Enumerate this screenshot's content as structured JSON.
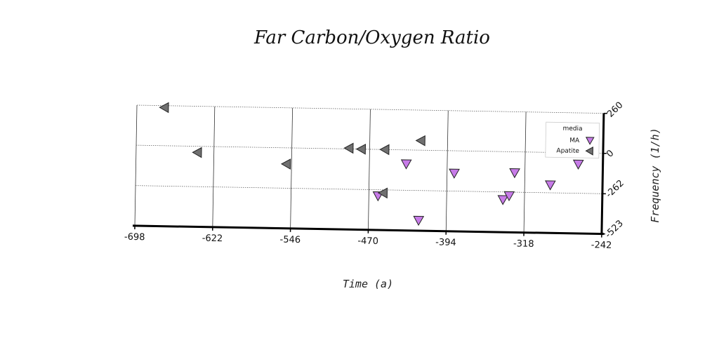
{
  "chart_data": {
    "type": "scatter",
    "title": "Far Carbon/Oxygen Ratio",
    "xlabel": "Time (a)",
    "ylabel": "Frequency (1/h)",
    "xlim": [
      -698,
      -242
    ],
    "ylim": [
      -523,
      260
    ],
    "xticks": [
      -698,
      -622,
      -546,
      -470,
      -394,
      -318,
      -242
    ],
    "yticks": [
      260,
      0,
      -262,
      -523
    ],
    "xtick_labels": [
      "-698",
      "-622",
      "-546",
      "-470",
      "-394",
      "-318",
      "-242"
    ],
    "ytick_labels": [
      "260",
      "0",
      "-262",
      "-523"
    ],
    "grid": true,
    "legend": {
      "title": "media",
      "position": "top-right"
    },
    "series": [
      {
        "name": "MA",
        "marker": "triangle-down",
        "color": "#c77be8",
        "points": [
          {
            "x": 461,
            "y": -301
          },
          {
            "x": 434,
            "y": -90
          },
          {
            "x": 421,
            "y": -455
          },
          {
            "x": 387,
            "y": -145
          },
          {
            "x": 339,
            "y": -311
          },
          {
            "x": 333,
            "y": -285
          },
          {
            "x": 328,
            "y": -135
          },
          {
            "x": 293,
            "y": -210
          },
          {
            "x": 266,
            "y": -72
          }
        ]
      },
      {
        "name": "Apatite",
        "marker": "triangle-left",
        "color": "#707070",
        "points": [
          {
            "x": 671,
            "y": 248
          },
          {
            "x": 638,
            "y": -40
          },
          {
            "x": 551,
            "y": -105
          },
          {
            "x": 478,
            "y": 0
          },
          {
            "x": 490,
            "y": 5
          },
          {
            "x": 455,
            "y": 0
          },
          {
            "x": 420,
            "y": 62
          },
          {
            "x": 456,
            "y": -282
          }
        ]
      }
    ]
  }
}
